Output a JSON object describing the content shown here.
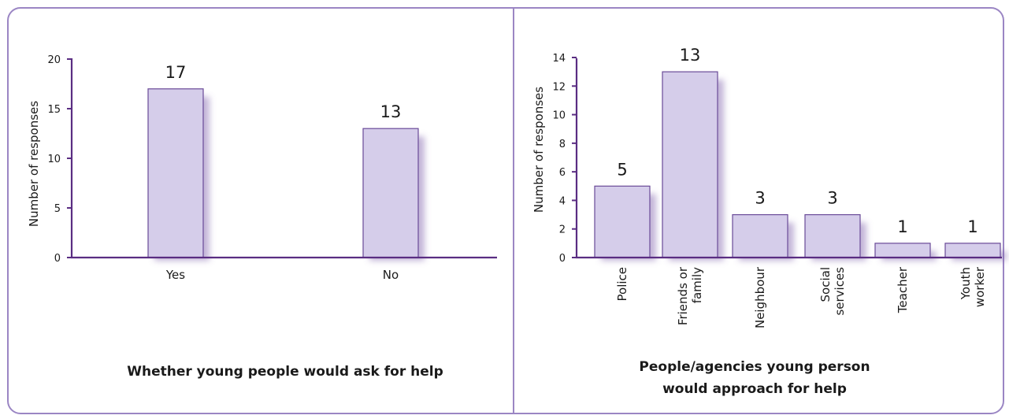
{
  "colors": {
    "frame": "#9b86c4",
    "axis": "#5a2d82",
    "bar_fill": "#d5cdea",
    "bar_stroke": "#6a4a98"
  },
  "chart_data": [
    {
      "type": "bar",
      "title": "Whether young people would ask for help",
      "ylabel": "Number of responses",
      "xlabel": "",
      "categories": [
        "Yes",
        "No"
      ],
      "category_lines": [
        [
          "Yes"
        ],
        [
          "No"
        ]
      ],
      "values": [
        17,
        13
      ],
      "data_labels": [
        "17",
        "13"
      ],
      "ylim": [
        0,
        20
      ],
      "yticks": [
        0,
        5,
        10,
        15,
        20
      ],
      "ytick_labels": [
        "0",
        "5",
        "10",
        "15",
        "20"
      ],
      "grid": false
    },
    {
      "type": "bar",
      "title": "People/agencies young person would approach for help",
      "title_lines": [
        "People/agencies young person",
        "would approach for help"
      ],
      "ylabel": "Number of responses",
      "xlabel": "",
      "categories": [
        "Police",
        "Friends or family",
        "Neighbour",
        "Social services",
        "Teacher",
        "Youth worker"
      ],
      "category_lines": [
        [
          "Police"
        ],
        [
          "Friends or",
          "family"
        ],
        [
          "Neighbour"
        ],
        [
          "Social",
          "services"
        ],
        [
          "Teacher"
        ],
        [
          "Youth",
          "worker"
        ]
      ],
      "values": [
        5,
        13,
        3,
        3,
        1,
        1
      ],
      "data_labels": [
        "5",
        "13",
        "3",
        "3",
        "1",
        "1"
      ],
      "ylim": [
        0,
        14
      ],
      "yticks": [
        0,
        2,
        4,
        6,
        8,
        10,
        12,
        14
      ],
      "ytick_labels": [
        "0",
        "2",
        "4",
        "6",
        "8",
        "10",
        "12",
        "14"
      ],
      "grid": false
    }
  ]
}
